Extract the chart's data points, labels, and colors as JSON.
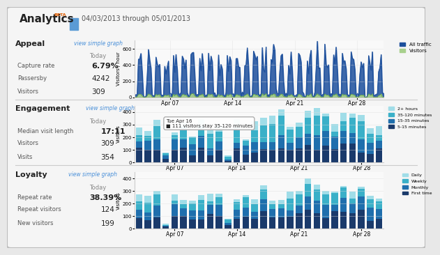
{
  "title": "Analytics",
  "beta_label": "BETA",
  "date_range": "04/03/2013 through 05/01/2013",
  "bg_color": "#e8e8e8",
  "panel_bg": "#f5f5f5",
  "border_color": "#bbbbbb",
  "appeal": {
    "section_title": "Appeal",
    "view_link": "view simple graph",
    "label": "Today",
    "capture_rate_label": "Capture rate",
    "capture_rate": "6.79%",
    "passersby_label": "Passersby",
    "passersby": "4242",
    "visitors_label": "Visitors",
    "visitors": "309",
    "ylabel": "Visitors / hour",
    "ylim": [
      0,
      700
    ],
    "yticks": [
      0,
      200,
      400,
      600
    ],
    "ytick_labels": [
      "0",
      "200",
      "400",
      "600"
    ],
    "xtick_labels": [
      "Apr 07",
      "Apr 14",
      "Apr 21",
      "Apr 28"
    ],
    "all_traffic_color": "#1c4f9c",
    "visitors_color": "#a8d08d",
    "visitors_line_color": "#5a9e3a",
    "legend_labels": [
      "All traffic",
      "Visitors"
    ]
  },
  "engagement": {
    "section_title": "Engagement",
    "view_link": "view simple graph",
    "label": "Today",
    "median_label": "Median visit length",
    "median_visit": "17:11",
    "visitors_label": "Visitors",
    "visitors": "309",
    "visits_label": "Visits",
    "visits": "354",
    "ylabel": "Visitors",
    "ylim": [
      0,
      450
    ],
    "yticks": [
      0,
      100,
      200,
      300,
      400
    ],
    "ytick_labels": [
      "0",
      "100",
      "200",
      "300",
      "400"
    ],
    "xtick_labels": [
      "Apr 07",
      "Apr 14",
      "Apr 21",
      "Apr 28"
    ],
    "colors": [
      "#1a3a6b",
      "#1f6fad",
      "#3ab0c8",
      "#a0dde8"
    ],
    "legend_labels": [
      "5-15 minutes",
      "15-35 minutes",
      "35-120 minutes",
      "2+ hours"
    ],
    "tooltip_line1": "Tue Apr 16",
    "tooltip_line2": "■ 111 visitors stay 35-120 minutes"
  },
  "loyalty": {
    "section_title": "Loyalty",
    "view_link": "view simple graph",
    "label": "Today",
    "repeat_rate_label": "Repeat rate",
    "repeat_rate": "38.39%",
    "repeat_visitors_label": "Repeat visitors",
    "repeat_visitors": "124",
    "new_visitors_label": "New visitors",
    "new_visitors": "199",
    "ylabel": "Visitors",
    "ylim": [
      0,
      450
    ],
    "yticks": [
      0,
      100,
      200,
      300,
      400
    ],
    "ytick_labels": [
      "0",
      "100",
      "200",
      "300",
      "400"
    ],
    "xtick_labels": [
      "Apr 07",
      "Apr 14",
      "Apr 21",
      "Apr 28"
    ],
    "colors": [
      "#1a3a6b",
      "#1f6fad",
      "#3ab0c8",
      "#a0dde8"
    ],
    "legend_labels": [
      "First time",
      "Monthly",
      "Weekly",
      "Daily"
    ]
  }
}
